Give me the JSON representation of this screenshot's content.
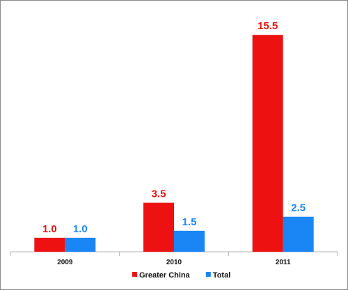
{
  "chart_data": {
    "type": "bar",
    "categories": [
      "2009",
      "2010",
      "2011"
    ],
    "series": [
      {
        "name": "Greater China",
        "values": [
          1.0,
          3.5,
          15.5
        ],
        "color": "#ee1111"
      },
      {
        "name": "Total",
        "values": [
          1.0,
          1.5,
          2.5
        ],
        "color": "#1a86f5"
      }
    ],
    "data_labels": [
      [
        "1.0",
        "3.5",
        "15.5"
      ],
      [
        "1.0",
        "1.5",
        "2.5"
      ]
    ],
    "title": "",
    "xlabel": "",
    "ylabel": "",
    "ylim": [
      0,
      17
    ],
    "grid": false,
    "legend_position": "bottom-center"
  }
}
